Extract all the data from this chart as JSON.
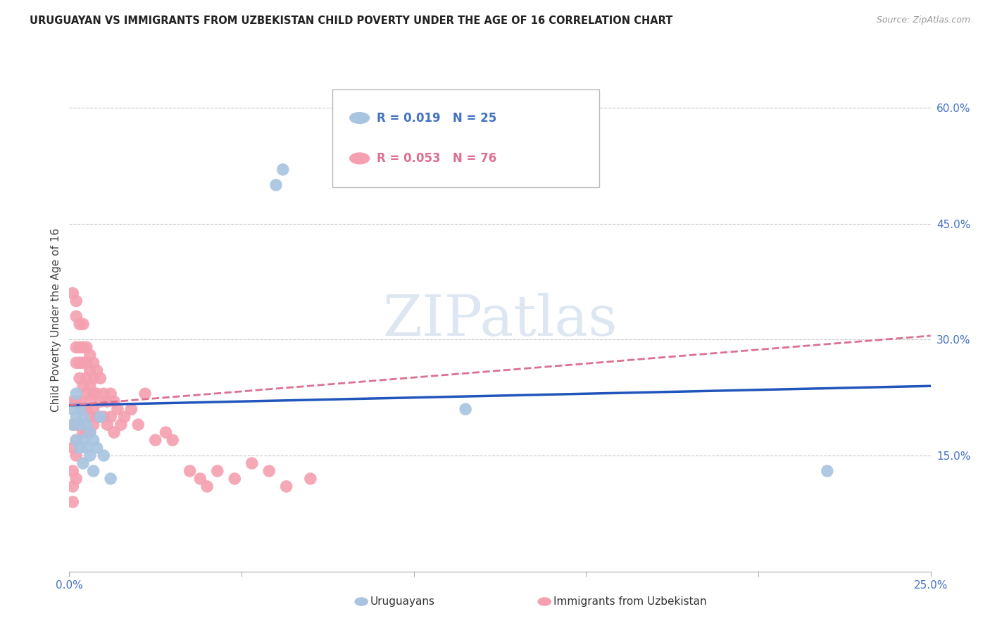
{
  "title": "URUGUAYAN VS IMMIGRANTS FROM UZBEKISTAN CHILD POVERTY UNDER THE AGE OF 16 CORRELATION CHART",
  "source": "Source: ZipAtlas.com",
  "ylabel": "Child Poverty Under the Age of 16",
  "xlim": [
    0.0,
    0.25
  ],
  "ylim": [
    0.0,
    0.65
  ],
  "xticks": [
    0.0,
    0.05,
    0.1,
    0.15,
    0.2,
    0.25
  ],
  "yticks": [
    0.0,
    0.15,
    0.3,
    0.45,
    0.6
  ],
  "grid_color": "#c8c8c8",
  "background_color": "#ffffff",
  "watermark_text": "ZIPatlas",
  "watermark_color": "#c8d8e8",
  "legend1_label": "Uruguayans",
  "legend2_label": "Immigrants from Uzbekistan",
  "uruguayan_color": "#a8c4e0",
  "uzbekistan_color": "#f4a0b0",
  "uruguayan_line_color": "#2255bb",
  "uzbekistan_line_color": "#dd7090",
  "tick_color": "#4472c4",
  "R_uruguayan": "R = 0.019",
  "N_uruguayan": "N = 25",
  "R_uzbekistan": "R = 0.053",
  "N_uzbekistan": "N = 76",
  "uruguayan_x": [
    0.001,
    0.001,
    0.002,
    0.002,
    0.002,
    0.003,
    0.003,
    0.003,
    0.004,
    0.004,
    0.004,
    0.005,
    0.005,
    0.006,
    0.006,
    0.007,
    0.007,
    0.008,
    0.009,
    0.01,
    0.012,
    0.06,
    0.062,
    0.115,
    0.22
  ],
  "uruguayan_y": [
    0.21,
    0.19,
    0.23,
    0.2,
    0.17,
    0.21,
    0.19,
    0.16,
    0.2,
    0.17,
    0.14,
    0.19,
    0.16,
    0.18,
    0.15,
    0.17,
    0.13,
    0.16,
    0.2,
    0.15,
    0.12,
    0.5,
    0.52,
    0.21,
    0.13
  ],
  "uzbekistan_x": [
    0.001,
    0.001,
    0.001,
    0.001,
    0.001,
    0.001,
    0.001,
    0.002,
    0.002,
    0.002,
    0.002,
    0.002,
    0.002,
    0.002,
    0.002,
    0.002,
    0.003,
    0.003,
    0.003,
    0.003,
    0.003,
    0.003,
    0.004,
    0.004,
    0.004,
    0.004,
    0.004,
    0.004,
    0.005,
    0.005,
    0.005,
    0.005,
    0.005,
    0.005,
    0.006,
    0.006,
    0.006,
    0.006,
    0.006,
    0.006,
    0.007,
    0.007,
    0.007,
    0.007,
    0.007,
    0.008,
    0.008,
    0.008,
    0.009,
    0.009,
    0.01,
    0.01,
    0.011,
    0.011,
    0.012,
    0.012,
    0.013,
    0.013,
    0.014,
    0.015,
    0.016,
    0.018,
    0.02,
    0.022,
    0.025,
    0.028,
    0.03,
    0.035,
    0.038,
    0.04,
    0.043,
    0.048,
    0.053,
    0.058,
    0.063,
    0.07
  ],
  "uzbekistan_y": [
    0.36,
    0.22,
    0.19,
    0.16,
    0.13,
    0.11,
    0.09,
    0.35,
    0.33,
    0.29,
    0.27,
    0.22,
    0.19,
    0.17,
    0.15,
    0.12,
    0.32,
    0.29,
    0.27,
    0.25,
    0.22,
    0.19,
    0.32,
    0.29,
    0.27,
    0.24,
    0.21,
    0.18,
    0.29,
    0.27,
    0.25,
    0.23,
    0.21,
    0.18,
    0.28,
    0.26,
    0.24,
    0.22,
    0.2,
    0.18,
    0.27,
    0.25,
    0.23,
    0.21,
    0.19,
    0.26,
    0.23,
    0.2,
    0.25,
    0.22,
    0.23,
    0.2,
    0.22,
    0.19,
    0.23,
    0.2,
    0.22,
    0.18,
    0.21,
    0.19,
    0.2,
    0.21,
    0.19,
    0.23,
    0.17,
    0.18,
    0.17,
    0.13,
    0.12,
    0.11,
    0.13,
    0.12,
    0.14,
    0.13,
    0.11,
    0.12
  ],
  "uru_trendline_x": [
    0.0,
    0.25
  ],
  "uru_trendline_y": [
    0.215,
    0.24
  ],
  "uzb_trendline_x": [
    0.0,
    0.25
  ],
  "uzb_trendline_y": [
    0.215,
    0.305
  ]
}
